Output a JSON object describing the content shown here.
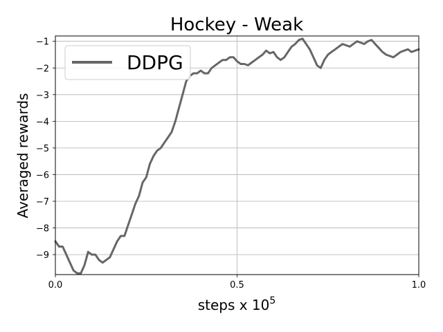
{
  "chart_data": {
    "type": "line",
    "title": "Hockey - Weak",
    "xlabel": "steps x 10",
    "xlabel_exponent": "5",
    "ylabel": "Averaged rewards",
    "xlim": [
      0,
      1.0
    ],
    "ylim": [
      -9.75,
      -0.8
    ],
    "x_ticks": [
      0.0,
      0.5,
      1.0
    ],
    "x_tick_labels": [
      "0.0",
      "0.5",
      "1.0"
    ],
    "y_ticks": [
      -9,
      -8,
      -7,
      -6,
      -5,
      -4,
      -3,
      -2,
      -1
    ],
    "y_tick_labels": [
      "−9",
      "−8",
      "−7",
      "−6",
      "−5",
      "−4",
      "−3",
      "−2",
      "−1"
    ],
    "grid": true,
    "legend_position": "top-left",
    "series": [
      {
        "name": "DDPG",
        "color": "#666666",
        "x": [
          0.0,
          0.01,
          0.02,
          0.03,
          0.04,
          0.05,
          0.06,
          0.07,
          0.08,
          0.09,
          0.1,
          0.11,
          0.12,
          0.13,
          0.14,
          0.15,
          0.16,
          0.17,
          0.18,
          0.19,
          0.2,
          0.21,
          0.22,
          0.23,
          0.24,
          0.25,
          0.26,
          0.27,
          0.28,
          0.29,
          0.3,
          0.31,
          0.32,
          0.33,
          0.34,
          0.35,
          0.36,
          0.37,
          0.38,
          0.39,
          0.4,
          0.41,
          0.42,
          0.43,
          0.44,
          0.45,
          0.46,
          0.47,
          0.48,
          0.49,
          0.5,
          0.51,
          0.52,
          0.53,
          0.54,
          0.55,
          0.56,
          0.57,
          0.58,
          0.59,
          0.6,
          0.61,
          0.62,
          0.63,
          0.64,
          0.65,
          0.66,
          0.67,
          0.68,
          0.69,
          0.7,
          0.71,
          0.72,
          0.73,
          0.74,
          0.75,
          0.76,
          0.77,
          0.78,
          0.79,
          0.8,
          0.81,
          0.82,
          0.83,
          0.84,
          0.85,
          0.86,
          0.87,
          0.88,
          0.89,
          0.9,
          0.91,
          0.92,
          0.93,
          0.94,
          0.95,
          0.96,
          0.97,
          0.98,
          0.99,
          1.0
        ],
        "y": [
          -8.5,
          -8.7,
          -8.7,
          -9.0,
          -9.3,
          -9.6,
          -9.7,
          -9.7,
          -9.4,
          -8.9,
          -9.0,
          -9.0,
          -9.2,
          -9.3,
          -9.2,
          -9.1,
          -8.8,
          -8.5,
          -8.3,
          -8.3,
          -7.9,
          -7.5,
          -7.1,
          -6.8,
          -6.3,
          -6.1,
          -5.6,
          -5.3,
          -5.1,
          -5.0,
          -4.8,
          -4.6,
          -4.4,
          -4.0,
          -3.5,
          -3.0,
          -2.5,
          -2.3,
          -2.2,
          -2.2,
          -2.1,
          -2.2,
          -2.2,
          -2.0,
          -1.9,
          -1.8,
          -1.7,
          -1.7,
          -1.6,
          -1.6,
          -1.75,
          -1.85,
          -1.85,
          -1.9,
          -1.8,
          -1.7,
          -1.6,
          -1.5,
          -1.35,
          -1.45,
          -1.4,
          -1.6,
          -1.7,
          -1.6,
          -1.4,
          -1.2,
          -1.1,
          -0.95,
          -0.9,
          -1.1,
          -1.3,
          -1.6,
          -1.9,
          -2.0,
          -1.7,
          -1.5,
          -1.4,
          -1.3,
          -1.2,
          -1.1,
          -1.15,
          -1.2,
          -1.1,
          -1.0,
          -1.05,
          -1.1,
          -1.0,
          -0.95,
          -1.1,
          -1.25,
          -1.4,
          -1.5,
          -1.55,
          -1.6,
          -1.5,
          -1.4,
          -1.35,
          -1.3,
          -1.4,
          -1.35,
          -1.3
        ]
      }
    ]
  }
}
